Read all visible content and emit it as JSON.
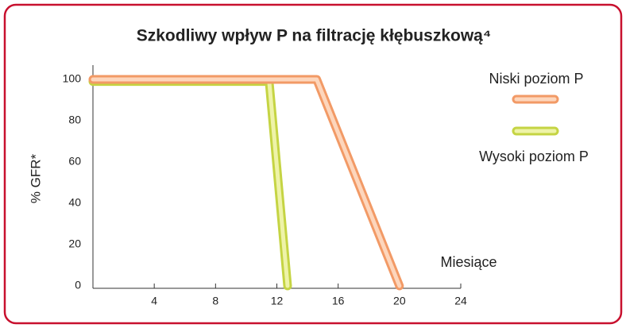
{
  "chart_data": {
    "type": "line",
    "title": "Szkodliwy wpływ P na filtrację kłębuszkową⁴",
    "x_label": "Miesiące",
    "y_label": "% GFR*",
    "xlim": [
      0,
      24
    ],
    "xticks": [
      4,
      8,
      12,
      16,
      20,
      24
    ],
    "ylim": [
      0,
      105
    ],
    "yticks": [
      0,
      20,
      40,
      60,
      80,
      100
    ],
    "series": [
      {
        "name": "Niski poziom P",
        "color": "#f29a66",
        "inner": "#fdd6bc",
        "x": [
          0,
          14.6,
          20
        ],
        "values": [
          100,
          100,
          0
        ]
      },
      {
        "name": "Wysoki poziom P",
        "color": "#c5d443",
        "inner": "#eef3a8",
        "x": [
          0,
          11.5,
          12.7
        ],
        "values": [
          99,
          99,
          0
        ]
      }
    ]
  }
}
